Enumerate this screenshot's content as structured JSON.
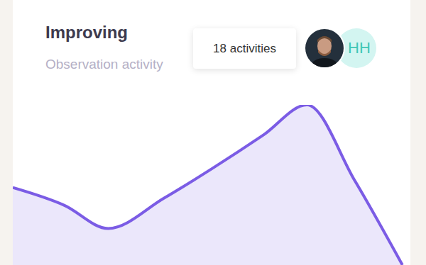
{
  "chart_data": {
    "type": "area",
    "title": "Improving",
    "subtitle": "Observation activity",
    "annotation": "18 activities",
    "avatar_initials": "HH",
    "x": [
      0,
      1.3,
      2.4,
      3.8,
      5,
      6.3,
      7.4,
      8.6,
      9.8
    ],
    "values": [
      8.7,
      6.7,
      4.1,
      7.5,
      10.8,
      14.6,
      18,
      9.5,
      0
    ],
    "xlim": [
      0,
      10
    ],
    "ylim": [
      0,
      18
    ],
    "color": "#7b5ce5",
    "grid": false,
    "tick_labels": false
  }
}
